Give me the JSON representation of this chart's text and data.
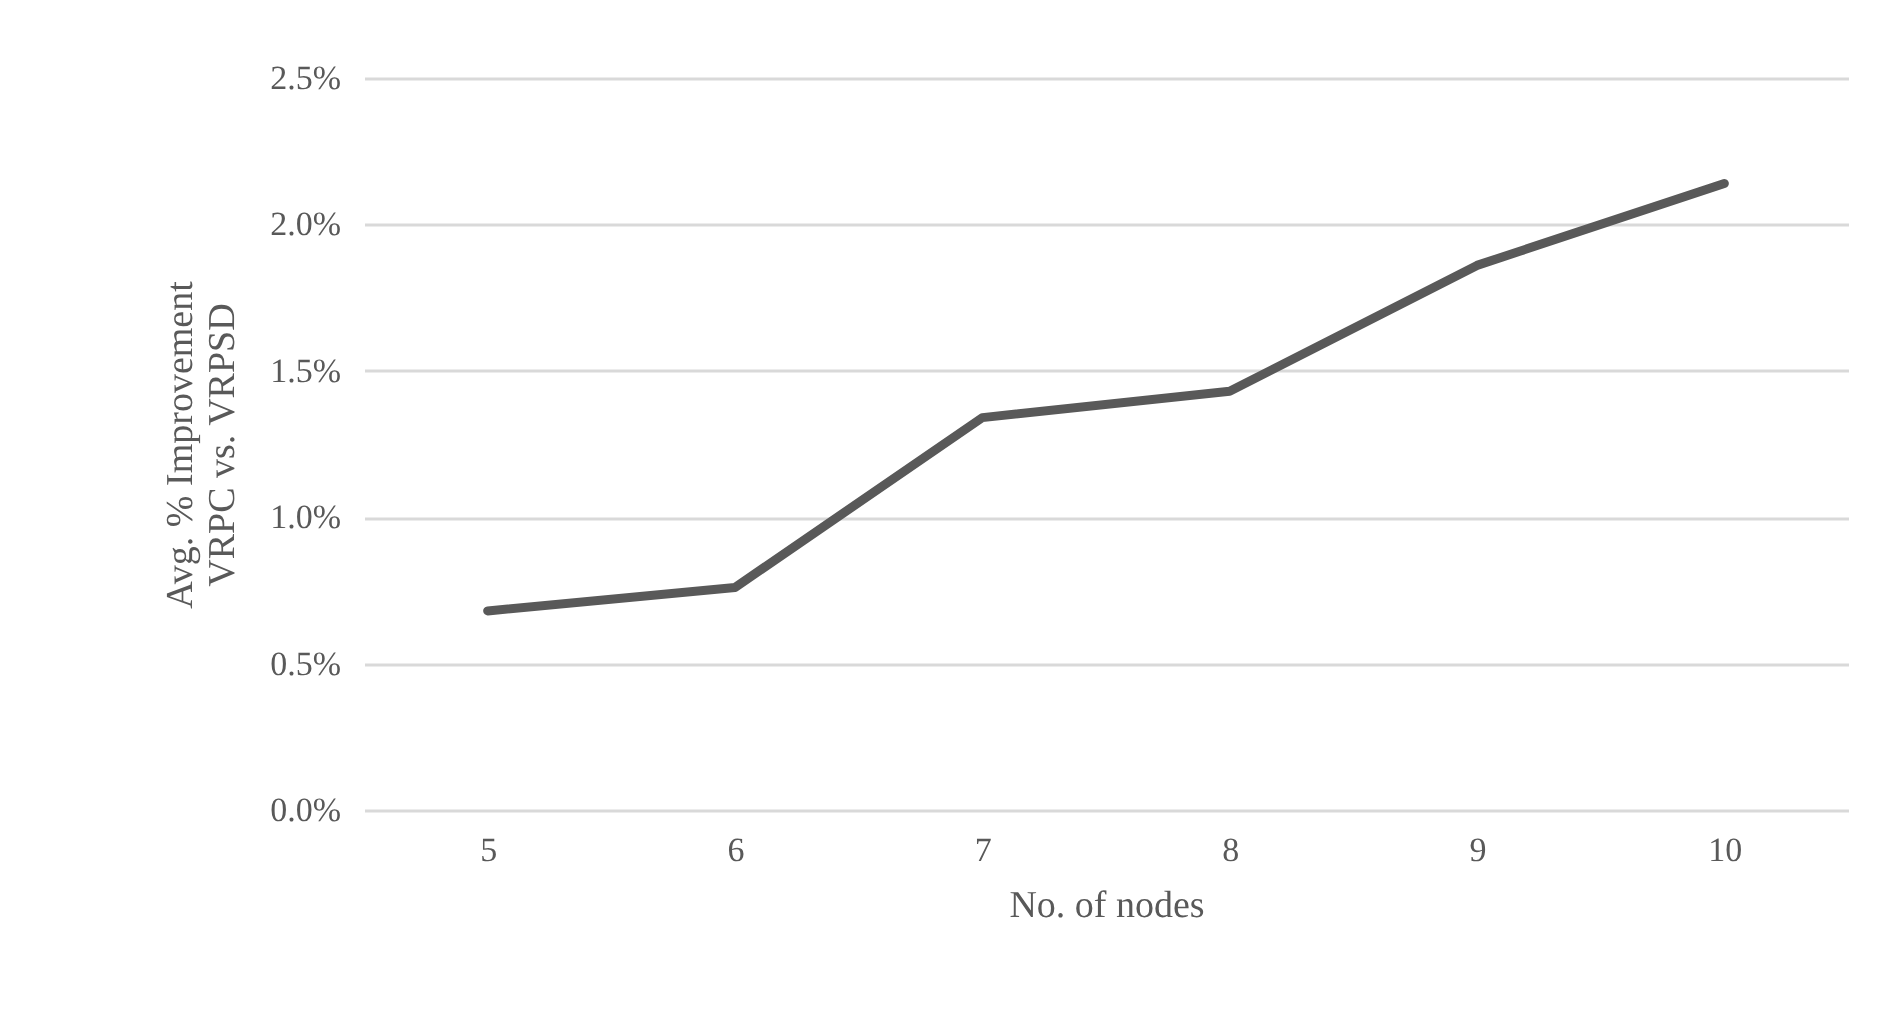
{
  "chart_data": {
    "type": "line",
    "xlabel": "No. of nodes",
    "ylabel": "Avg. % Improvement\nVRPC vs. VRPSD",
    "categories": [
      "5",
      "6",
      "7",
      "8",
      "9",
      "10"
    ],
    "series": [
      {
        "color": "#595959",
        "values": [
          0.68,
          0.76,
          1.34,
          1.43,
          1.86,
          2.14
        ]
      }
    ],
    "ylim": [
      0,
      2.5
    ],
    "yticks": [
      {
        "value": 0,
        "label": "0.0%"
      },
      {
        "value": 0.5,
        "label": "0.5%"
      },
      {
        "value": 1,
        "label": "1.0%"
      },
      {
        "value": 1.5,
        "label": "1.5%"
      },
      {
        "value": 2,
        "label": "2.0%"
      },
      {
        "value": 2.5,
        "label": "2.5%"
      }
    ],
    "grid": "y",
    "marker": "none",
    "line_style": "solid"
  }
}
